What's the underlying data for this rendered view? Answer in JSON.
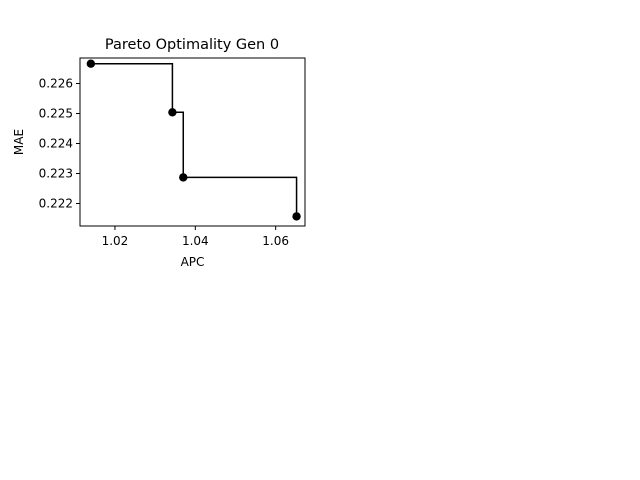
{
  "chart_data": {
    "type": "line",
    "title": "Pareto Optimality Gen 0",
    "xlabel": "APC",
    "ylabel": "MAE",
    "xlim": [
      1.0113,
      1.0673
    ],
    "ylim": [
      0.22125,
      0.22685
    ],
    "xticks": [
      1.02,
      1.04,
      1.06
    ],
    "xtick_labels": [
      "1.02",
      "1.04",
      "1.06"
    ],
    "yticks": [
      0.222,
      0.223,
      0.224,
      0.225,
      0.226
    ],
    "ytick_labels": [
      "0.222",
      "0.223",
      "0.224",
      "0.225",
      "0.226"
    ],
    "grid": false,
    "step": "post",
    "series": [
      {
        "color": "#000000",
        "marker": "circle",
        "x": [
          1.014,
          1.0343,
          1.037,
          1.0652
        ],
        "y": [
          0.22666,
          0.22504,
          0.22287,
          0.22157
        ]
      }
    ]
  }
}
